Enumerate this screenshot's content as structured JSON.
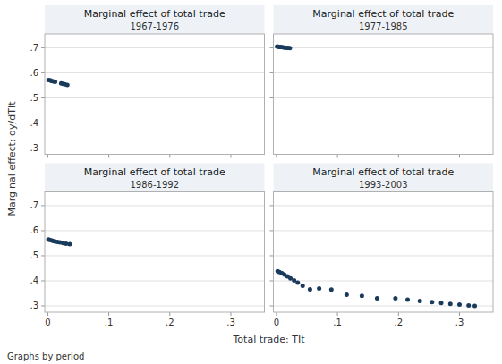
{
  "xlabel": "Total trade: TIt",
  "ylabel": "Marginal effect: dy/dTIt",
  "footer": "Graphs by period",
  "chart_data": [
    {
      "type": "scatter",
      "title": "Marginal effect of total trade",
      "subtitle": "1967-1976",
      "x": [
        0.001,
        0.004,
        0.006,
        0.009,
        0.012,
        0.022,
        0.025,
        0.028,
        0.032
      ],
      "values": [
        0.571,
        0.57,
        0.568,
        0.566,
        0.564,
        0.558,
        0.556,
        0.554,
        0.552
      ],
      "color": "#1a3a5c",
      "xlim": [
        -0.005,
        0.355
      ],
      "ylim": [
        0.275,
        0.755
      ],
      "xticks": [
        0,
        0.1,
        0.2,
        0.3
      ],
      "yticks": [
        {
          "value": 0.3,
          "label": ".3"
        },
        {
          "value": 0.4,
          "label": ".4"
        },
        {
          "value": 0.5,
          "label": ".5"
        },
        {
          "value": 0.6,
          "label": ".6"
        },
        {
          "value": 0.7,
          "label": ".7"
        }
      ],
      "tick_labels": "y",
      "grid": true
    },
    {
      "type": "scatter",
      "title": "Marginal effect of total trade",
      "subtitle": "1977-1985",
      "x": [
        0.001,
        0.003,
        0.005,
        0.007,
        0.01,
        0.013,
        0.016,
        0.019,
        0.022
      ],
      "values": [
        0.705,
        0.704,
        0.703,
        0.703,
        0.702,
        0.701,
        0.7,
        0.7,
        0.699
      ],
      "color": "#1a3a5c",
      "xlim": [
        -0.005,
        0.355
      ],
      "ylim": [
        0.275,
        0.755
      ],
      "xticks": [
        0,
        0.1,
        0.2,
        0.3
      ],
      "yticks": [
        0.3,
        0.4,
        0.5,
        0.6,
        0.7
      ],
      "tick_labels": false,
      "grid": true
    },
    {
      "type": "scatter",
      "title": "Marginal effect of total trade",
      "subtitle": "1986-1992",
      "x": [
        0.001,
        0.003,
        0.006,
        0.009,
        0.012,
        0.016,
        0.02,
        0.025,
        0.03,
        0.036
      ],
      "values": [
        0.565,
        0.563,
        0.561,
        0.559,
        0.557,
        0.555,
        0.553,
        0.551,
        0.548,
        0.546
      ],
      "color": "#1a3a5c",
      "xlim": [
        -0.005,
        0.355
      ],
      "ylim": [
        0.275,
        0.755
      ],
      "xticks": [
        0,
        {
          "value": 0.1,
          "label": ".1"
        },
        {
          "value": 0.2,
          "label": ".2"
        },
        {
          "value": 0.3,
          "label": ".3"
        }
      ],
      "yticks": [
        {
          "value": 0.3,
          "label": ".3"
        },
        {
          "value": 0.4,
          "label": ".4"
        },
        {
          "value": 0.5,
          "label": ".5"
        },
        {
          "value": 0.6,
          "label": ".6"
        },
        {
          "value": 0.7,
          "label": ".7"
        }
      ],
      "grid": true
    },
    {
      "type": "scatter",
      "title": "Marginal effect of total trade",
      "subtitle": "1993-2003",
      "x": [
        0.002,
        0.005,
        0.009,
        0.013,
        0.018,
        0.023,
        0.029,
        0.035,
        0.043,
        0.055,
        0.07,
        0.09,
        0.115,
        0.14,
        0.165,
        0.195,
        0.215,
        0.235,
        0.255,
        0.27,
        0.285,
        0.3,
        0.315,
        0.325
      ],
      "values": [
        0.438,
        0.435,
        0.43,
        0.425,
        0.418,
        0.41,
        0.402,
        0.393,
        0.38,
        0.366,
        0.37,
        0.365,
        0.345,
        0.34,
        0.33,
        0.33,
        0.325,
        0.32,
        0.315,
        0.312,
        0.308,
        0.305,
        0.302,
        0.3
      ],
      "color": "#1a3a5c",
      "xlim": [
        -0.005,
        0.355
      ],
      "ylim": [
        0.275,
        0.755
      ],
      "xticks": [
        0,
        {
          "value": 0.1,
          "label": ".1"
        },
        {
          "value": 0.2,
          "label": ".2"
        },
        {
          "value": 0.3,
          "label": ".3"
        }
      ],
      "yticks": [
        0.3,
        0.4,
        0.5,
        0.6,
        0.7
      ],
      "tick_labels": "x",
      "grid": true
    }
  ]
}
